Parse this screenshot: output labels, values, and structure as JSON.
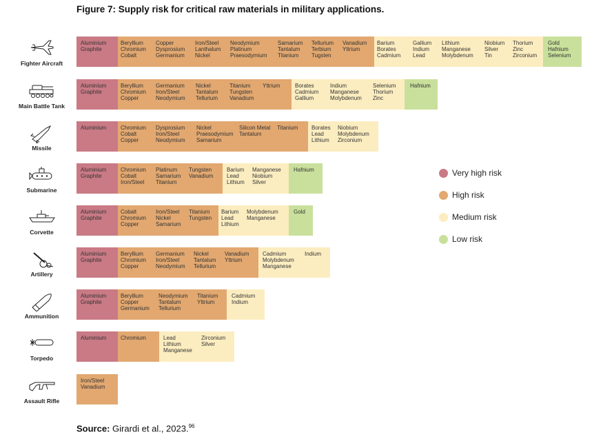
{
  "title": "Figure 7: Supply risk for critical raw materials in military applications.",
  "source": {
    "label": "Source:",
    "text": "Girardi et al., 2023.",
    "ref": "96"
  },
  "legend": [
    {
      "label": "Very high risk",
      "color": "#c97a85"
    },
    {
      "label": "High risk",
      "color": "#e2a870"
    },
    {
      "label": "Medium risk",
      "color": "#fcedc0"
    },
    {
      "label": "Low risk",
      "color": "#c9e09c"
    }
  ],
  "chart_data": {
    "type": "table",
    "risk_levels": [
      "Very high risk",
      "High risk",
      "Medium risk",
      "Low risk"
    ],
    "applications": [
      {
        "name": "Fighter Aircraft",
        "icon": "fighter-aircraft-icon",
        "segments": [
          {
            "risk": "Very high risk",
            "materials": [
              "Aluminium",
              "Graphite"
            ]
          },
          {
            "risk": "High risk",
            "materials": [
              "Beryllium",
              "Chromium",
              "Cobalt",
              "Copper",
              "Dysprosium",
              "Germanium",
              "Iron/Steel",
              "Lanthalum",
              "Nickel",
              "Neodymium",
              "Platinum",
              "Praesodymium",
              "Samarium",
              "Tantalum",
              "Titanium",
              "Tellurium",
              "Terbium",
              "Tugsten",
              "Vanadium",
              "Yttrium"
            ]
          },
          {
            "risk": "Medium risk",
            "materials": [
              "Barium",
              "Borates",
              "Cadmium",
              "Gallium",
              "Indium",
              "Lead",
              "Lithium",
              "Manganese",
              "Molybdenum",
              "Niobium",
              "Silver",
              "Tin",
              "Thorium",
              "Zinc",
              "Zirconium"
            ]
          },
          {
            "risk": "Low risk",
            "materials": [
              "Gold",
              "Hafnium",
              "Selenium"
            ]
          }
        ]
      },
      {
        "name": "Main Battle Tank",
        "icon": "tank-icon",
        "segments": [
          {
            "risk": "Very high risk",
            "materials": [
              "Aluminium",
              "Graphite"
            ]
          },
          {
            "risk": "High risk",
            "materials": [
              "Beryllium",
              "Chromium",
              "Copper",
              "Germanium",
              "Iron/Steel",
              "Neodymium",
              "Nickel",
              "Tantalum",
              "Tellurium",
              "Titanium",
              "Tungsten",
              "Vanadium",
              "Yttrium"
            ]
          },
          {
            "risk": "Medium risk",
            "materials": [
              "Borates",
              "Cadmium",
              "Gallium",
              "Indium",
              "Manganese",
              "Molybdenum",
              "Selenium",
              "Thorium",
              "Zinc"
            ]
          },
          {
            "risk": "Low risk",
            "materials": [
              "Hafnium"
            ]
          }
        ]
      },
      {
        "name": "Missile",
        "icon": "missile-icon",
        "segments": [
          {
            "risk": "Very high risk",
            "materials": [
              "Aluminium"
            ]
          },
          {
            "risk": "High risk",
            "materials": [
              "Chromium",
              "Cobalt",
              "Copper",
              "Dysprosium",
              "Iron/Steel",
              "Neodymium",
              "Nickel",
              "Praesodymium",
              "Samarium",
              "Silicon Metal",
              "Tantalum",
              "Titanium",
              "Tungsten"
            ]
          },
          {
            "risk": "Medium risk",
            "materials": [
              "Borates",
              "Lead",
              "Lithium",
              "Niobium",
              "Molybdenum",
              "Zirconium"
            ]
          }
        ]
      },
      {
        "name": "Submarine",
        "icon": "submarine-icon",
        "segments": [
          {
            "risk": "Very high risk",
            "materials": [
              "Aluminium",
              "Graphite"
            ]
          },
          {
            "risk": "High risk",
            "materials": [
              "Chromium",
              "Cobalt",
              "Iron/Steel",
              "Platinum",
              "Samarium",
              "Titanium",
              "Tungsten",
              "Vanadium"
            ]
          },
          {
            "risk": "Medium risk",
            "materials": [
              "Barium",
              "Lead",
              "Lithium",
              "Manganese",
              "Niobium",
              "Silver"
            ]
          },
          {
            "risk": "Low risk",
            "materials": [
              "Hafnium"
            ]
          }
        ]
      },
      {
        "name": "Corvette",
        "icon": "corvette-icon",
        "segments": [
          {
            "risk": "Very high risk",
            "materials": [
              "Aluminium",
              "Graphite"
            ]
          },
          {
            "risk": "High risk",
            "materials": [
              "Cobalt",
              "Chromium",
              "Copper",
              "Iron/Steel",
              "Nickel",
              "Samarium",
              "Titanium",
              "Tungsten"
            ]
          },
          {
            "risk": "Medium risk",
            "materials": [
              "Barium",
              "Lead",
              "Lithium",
              "Molybdenum",
              "Manganese"
            ]
          },
          {
            "risk": "Low risk",
            "materials": [
              "Gold"
            ]
          }
        ]
      },
      {
        "name": "Artillery",
        "icon": "artillery-icon",
        "segments": [
          {
            "risk": "Very high risk",
            "materials": [
              "Aluminium",
              "Graphite"
            ]
          },
          {
            "risk": "High risk",
            "materials": [
              "Beryllium",
              "Chromium",
              "Copper",
              "Germanium",
              "Iron/Steel",
              "Neodymium",
              "Nickel",
              "Tantalum",
              "Tellurium",
              "Vanadium",
              "Yttrium"
            ]
          },
          {
            "risk": "Medium risk",
            "materials": [
              "Cadmium",
              "Molybdenum",
              "Manganese",
              "Indium"
            ]
          }
        ]
      },
      {
        "name": "Ammunition",
        "icon": "ammunition-icon",
        "segments": [
          {
            "risk": "Very high risk",
            "materials": [
              "Aluminium",
              "Graphite"
            ]
          },
          {
            "risk": "High risk",
            "materials": [
              "Beryllium",
              "Copper",
              "Germanium",
              "Neodymium",
              "Tantalum",
              "Tellurium",
              "Titanium",
              "Yttrium"
            ]
          },
          {
            "risk": "Medium risk",
            "materials": [
              "Cadmium",
              "Indium"
            ]
          }
        ]
      },
      {
        "name": "Torpedo",
        "icon": "torpedo-icon",
        "segments": [
          {
            "risk": "Very high risk",
            "materials": [
              "Aluminium"
            ]
          },
          {
            "risk": "High risk",
            "materials": [
              "Chromium"
            ]
          },
          {
            "risk": "Medium risk",
            "materials": [
              "Lead",
              "Lithium",
              "Manganese",
              "Zirconium",
              "Silver"
            ]
          }
        ]
      },
      {
        "name": "Assault Rifle",
        "icon": "assault-rifle-icon",
        "segments": [
          {
            "risk": "High risk",
            "materials": [
              "Iron/Steel",
              "Vanadium"
            ]
          }
        ]
      }
    ]
  }
}
